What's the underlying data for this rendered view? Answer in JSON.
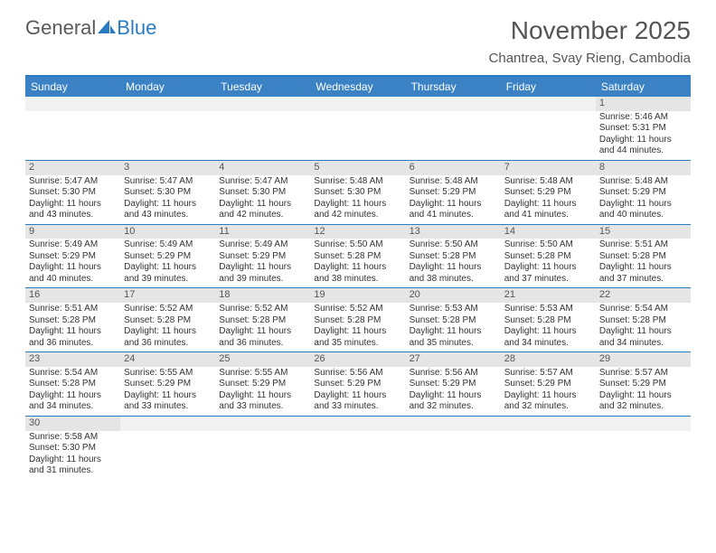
{
  "logo": {
    "word1": "General",
    "word2": "Blue"
  },
  "title": {
    "month": "November 2025",
    "location": "Chantrea, Svay Rieng, Cambodia"
  },
  "colors": {
    "header_bar": "#3a82c4",
    "rule": "#2a7bbf",
    "daynum_bg": "#e5e5e5",
    "empty_bg": "#f2f2f2",
    "text_dark": "#333333",
    "text_muted": "#555555"
  },
  "daynames": [
    "Sunday",
    "Monday",
    "Tuesday",
    "Wednesday",
    "Thursday",
    "Friday",
    "Saturday"
  ],
  "weeks": [
    [
      {
        "n": "",
        "e": true
      },
      {
        "n": "",
        "e": true
      },
      {
        "n": "",
        "e": true
      },
      {
        "n": "",
        "e": true
      },
      {
        "n": "",
        "e": true
      },
      {
        "n": "",
        "e": true
      },
      {
        "n": "1",
        "sr": "5:46 AM",
        "ss": "5:31 PM",
        "dl": "11 hours and 44 minutes."
      }
    ],
    [
      {
        "n": "2",
        "sr": "5:47 AM",
        "ss": "5:30 PM",
        "dl": "11 hours and 43 minutes."
      },
      {
        "n": "3",
        "sr": "5:47 AM",
        "ss": "5:30 PM",
        "dl": "11 hours and 43 minutes."
      },
      {
        "n": "4",
        "sr": "5:47 AM",
        "ss": "5:30 PM",
        "dl": "11 hours and 42 minutes."
      },
      {
        "n": "5",
        "sr": "5:48 AM",
        "ss": "5:30 PM",
        "dl": "11 hours and 42 minutes."
      },
      {
        "n": "6",
        "sr": "5:48 AM",
        "ss": "5:29 PM",
        "dl": "11 hours and 41 minutes."
      },
      {
        "n": "7",
        "sr": "5:48 AM",
        "ss": "5:29 PM",
        "dl": "11 hours and 41 minutes."
      },
      {
        "n": "8",
        "sr": "5:48 AM",
        "ss": "5:29 PM",
        "dl": "11 hours and 40 minutes."
      }
    ],
    [
      {
        "n": "9",
        "sr": "5:49 AM",
        "ss": "5:29 PM",
        "dl": "11 hours and 40 minutes."
      },
      {
        "n": "10",
        "sr": "5:49 AM",
        "ss": "5:29 PM",
        "dl": "11 hours and 39 minutes."
      },
      {
        "n": "11",
        "sr": "5:49 AM",
        "ss": "5:29 PM",
        "dl": "11 hours and 39 minutes."
      },
      {
        "n": "12",
        "sr": "5:50 AM",
        "ss": "5:28 PM",
        "dl": "11 hours and 38 minutes."
      },
      {
        "n": "13",
        "sr": "5:50 AM",
        "ss": "5:28 PM",
        "dl": "11 hours and 38 minutes."
      },
      {
        "n": "14",
        "sr": "5:50 AM",
        "ss": "5:28 PM",
        "dl": "11 hours and 37 minutes."
      },
      {
        "n": "15",
        "sr": "5:51 AM",
        "ss": "5:28 PM",
        "dl": "11 hours and 37 minutes."
      }
    ],
    [
      {
        "n": "16",
        "sr": "5:51 AM",
        "ss": "5:28 PM",
        "dl": "11 hours and 36 minutes."
      },
      {
        "n": "17",
        "sr": "5:52 AM",
        "ss": "5:28 PM",
        "dl": "11 hours and 36 minutes."
      },
      {
        "n": "18",
        "sr": "5:52 AM",
        "ss": "5:28 PM",
        "dl": "11 hours and 36 minutes."
      },
      {
        "n": "19",
        "sr": "5:52 AM",
        "ss": "5:28 PM",
        "dl": "11 hours and 35 minutes."
      },
      {
        "n": "20",
        "sr": "5:53 AM",
        "ss": "5:28 PM",
        "dl": "11 hours and 35 minutes."
      },
      {
        "n": "21",
        "sr": "5:53 AM",
        "ss": "5:28 PM",
        "dl": "11 hours and 34 minutes."
      },
      {
        "n": "22",
        "sr": "5:54 AM",
        "ss": "5:28 PM",
        "dl": "11 hours and 34 minutes."
      }
    ],
    [
      {
        "n": "23",
        "sr": "5:54 AM",
        "ss": "5:28 PM",
        "dl": "11 hours and 34 minutes."
      },
      {
        "n": "24",
        "sr": "5:55 AM",
        "ss": "5:29 PM",
        "dl": "11 hours and 33 minutes."
      },
      {
        "n": "25",
        "sr": "5:55 AM",
        "ss": "5:29 PM",
        "dl": "11 hours and 33 minutes."
      },
      {
        "n": "26",
        "sr": "5:56 AM",
        "ss": "5:29 PM",
        "dl": "11 hours and 33 minutes."
      },
      {
        "n": "27",
        "sr": "5:56 AM",
        "ss": "5:29 PM",
        "dl": "11 hours and 32 minutes."
      },
      {
        "n": "28",
        "sr": "5:57 AM",
        "ss": "5:29 PM",
        "dl": "11 hours and 32 minutes."
      },
      {
        "n": "29",
        "sr": "5:57 AM",
        "ss": "5:29 PM",
        "dl": "11 hours and 32 minutes."
      }
    ],
    [
      {
        "n": "30",
        "sr": "5:58 AM",
        "ss": "5:30 PM",
        "dl": "11 hours and 31 minutes."
      },
      {
        "n": "",
        "e": true
      },
      {
        "n": "",
        "e": true
      },
      {
        "n": "",
        "e": true
      },
      {
        "n": "",
        "e": true
      },
      {
        "n": "",
        "e": true
      },
      {
        "n": "",
        "e": true
      }
    ]
  ],
  "labels": {
    "sunrise": "Sunrise: ",
    "sunset": "Sunset: ",
    "daylight": "Daylight: "
  }
}
